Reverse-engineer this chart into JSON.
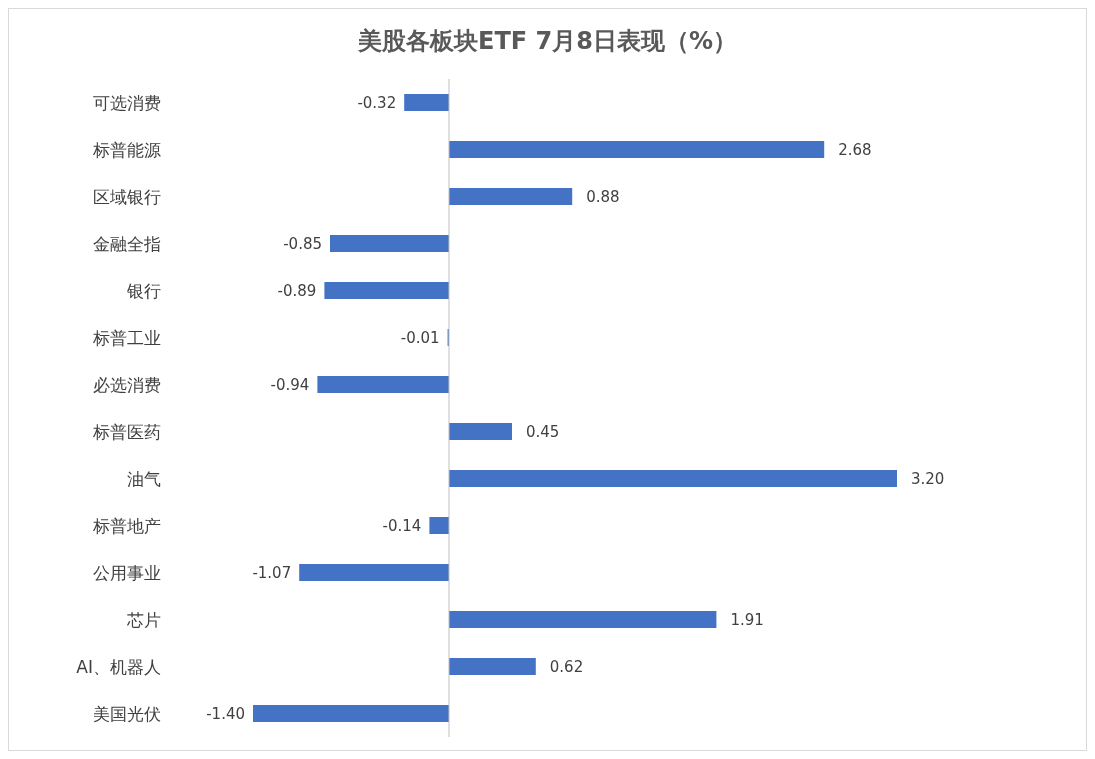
{
  "chart_data": {
    "type": "bar",
    "orientation": "horizontal",
    "title": "美股各板块ETF  7月8日表现（%）",
    "categories": [
      "可选消费",
      "标普能源",
      "区域银行",
      "金融全指",
      "银行",
      "标普工业",
      "必选消费",
      "标普医药",
      "油气",
      "标普地产",
      "公用事业",
      "芯片",
      "AI、机器人",
      "美国光伏"
    ],
    "values": [
      -0.32,
      2.68,
      0.88,
      -0.85,
      -0.89,
      -0.01,
      -0.94,
      0.45,
      3.2,
      -0.14,
      -1.07,
      1.91,
      0.62,
      -1.4
    ],
    "value_labels": [
      "-0.32",
      "2.68",
      "0.88",
      "-0.85",
      "-0.89",
      "-0.01",
      "-0.94",
      "0.45",
      "3.20",
      "-0.14",
      "-1.07",
      "1.91",
      "0.62",
      "-1.40"
    ],
    "color": "#4472c4"
  }
}
